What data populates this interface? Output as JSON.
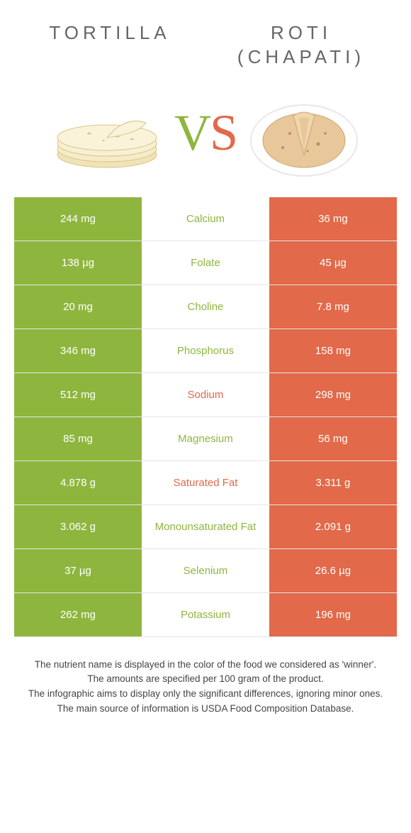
{
  "left": {
    "title": "TORTILLA",
    "color": "#8eb63e"
  },
  "right": {
    "title": "ROTI (CHAPATI)",
    "color": "#e2694a"
  },
  "vs": {
    "v": "V",
    "s": "S"
  },
  "rows": [
    {
      "left": "244 mg",
      "label": "Calcium",
      "right": "36 mg",
      "winner": "left"
    },
    {
      "left": "138 µg",
      "label": "Folate",
      "right": "45 µg",
      "winner": "left"
    },
    {
      "left": "20 mg",
      "label": "Choline",
      "right": "7.8 mg",
      "winner": "left"
    },
    {
      "left": "346 mg",
      "label": "Phosphorus",
      "right": "158 mg",
      "winner": "left"
    },
    {
      "left": "512 mg",
      "label": "Sodium",
      "right": "298 mg",
      "winner": "right"
    },
    {
      "left": "85 mg",
      "label": "Magnesium",
      "right": "56 mg",
      "winner": "left"
    },
    {
      "left": "4.878 g",
      "label": "Saturated Fat",
      "right": "3.311 g",
      "winner": "right"
    },
    {
      "left": "3.062 g",
      "label": "Monounsaturated Fat",
      "right": "2.091 g",
      "winner": "left"
    },
    {
      "left": "37 µg",
      "label": "Selenium",
      "right": "26.6 µg",
      "winner": "left"
    },
    {
      "left": "262 mg",
      "label": "Potassium",
      "right": "196 mg",
      "winner": "left"
    }
  ],
  "footer": [
    "The nutrient name is displayed in the color of the food we considered as 'winner'.",
    "The amounts are specified per 100 gram of the product.",
    "The infographic aims to display only the significant differences, ignoring minor ones.",
    "The main source of information is USDA Food Composition Database."
  ],
  "colors": {
    "left_bg": "#8eb63e",
    "right_bg": "#e2694a",
    "title_text": "#666666",
    "footer_text": "#444444"
  }
}
